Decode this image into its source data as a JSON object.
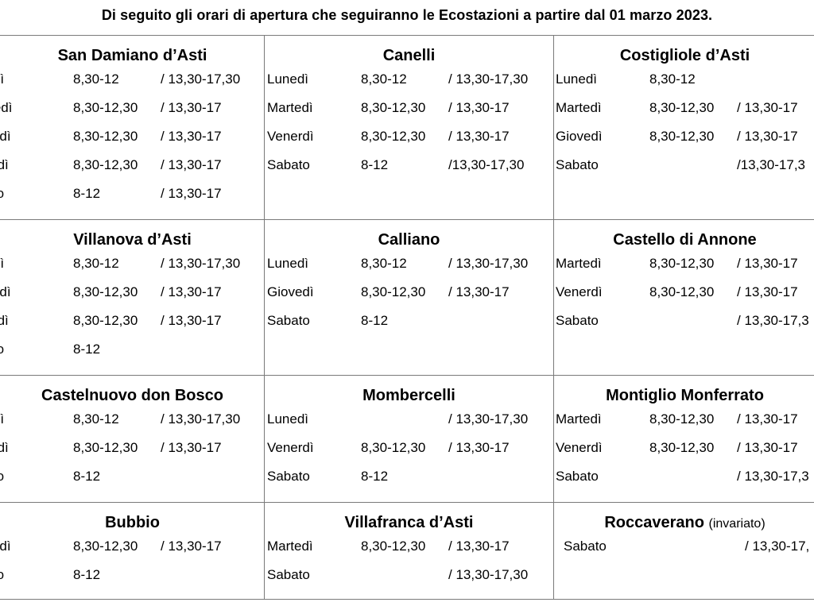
{
  "header": {
    "title": "Di seguito gli orari di apertura che seguiranno le Ecostazioni a partire dal 01 marzo 2023."
  },
  "stations": [
    {
      "name": "San Damiano d’Asti",
      "note": "",
      "rows": [
        {
          "day": "nedì",
          "am": "8,30-12",
          "pm": "/ 13,30-17,30"
        },
        {
          "day": "artedì",
          "am": "8,30-12,30",
          "pm": "/ 13,30-17"
        },
        {
          "day": "ovedì",
          "am": "8,30-12,30",
          "pm": "/ 13,30-17"
        },
        {
          "day": "nerdì",
          "am": "8,30-12,30",
          "pm": "/ 13,30-17"
        },
        {
          "day": "bato",
          "am": "8-12",
          "pm": "/ 13,30-17"
        }
      ]
    },
    {
      "name": "Canelli",
      "note": "",
      "rows": [
        {
          "day": "Lunedì",
          "am": "8,30-12",
          "pm": "/ 13,30-17,30"
        },
        {
          "day": "Martedì",
          "am": "8,30-12,30",
          "pm": "/ 13,30-17"
        },
        {
          "day": "Venerdì",
          "am": "8,30-12,30",
          "pm": "/ 13,30-17"
        },
        {
          "day": "Sabato",
          "am": "8-12",
          "pm": "/13,30-17,30"
        }
      ]
    },
    {
      "name": "Costigliole d’Asti",
      "note": "",
      "rows": [
        {
          "day": "Lunedì",
          "am": "8,30-12",
          "pm": ""
        },
        {
          "day": "Martedì",
          "am": "8,30-12,30",
          "pm": "/ 13,30-17"
        },
        {
          "day": "Giovedì",
          "am": "8,30-12,30",
          "pm": "/ 13,30-17"
        },
        {
          "day": "Sabato",
          "am": "",
          "pm": "/13,30-17,3"
        }
      ]
    },
    {
      "name": "Villanova d’Asti",
      "note": "",
      "rows": [
        {
          "day": "nedì",
          "am": "8,30-12",
          "pm": "/ 13,30-17,30"
        },
        {
          "day": "ovedì",
          "am": "8,30-12,30",
          "pm": "/ 13,30-17"
        },
        {
          "day": "nerdì",
          "am": "8,30-12,30",
          "pm": "/ 13,30-17"
        },
        {
          "day": "bato",
          "am": "8-12",
          "pm": ""
        }
      ]
    },
    {
      "name": "Calliano",
      "note": "",
      "rows": [
        {
          "day": "Lunedì",
          "am": "8,30-12",
          "pm": "/ 13,30-17,30"
        },
        {
          "day": "Giovedì",
          "am": "8,30-12,30",
          "pm": "/ 13,30-17"
        },
        {
          "day": "Sabato",
          "am": "8-12",
          "pm": ""
        }
      ]
    },
    {
      "name": "Castello di Annone",
      "note": "",
      "rows": [
        {
          "day": "Martedì",
          "am": "8,30-12,30",
          "pm": "/ 13,30-17"
        },
        {
          "day": "Venerdì",
          "am": "8,30-12,30",
          "pm": "/ 13,30-17"
        },
        {
          "day": "Sabato",
          "am": "",
          "pm": "/ 13,30-17,3"
        }
      ]
    },
    {
      "name": "Castelnuovo don Bosco",
      "note": "",
      "rows": [
        {
          "day": "nedì",
          "am": "8,30-12",
          "pm": "/ 13,30-17,30"
        },
        {
          "day": "nerdì",
          "am": "8,30-12,30",
          "pm": "/ 13,30-17"
        },
        {
          "day": "bato",
          "am": "8-12",
          "pm": ""
        }
      ]
    },
    {
      "name": "Mombercelli",
      "note": "",
      "rows": [
        {
          "day": "Lunedì",
          "am": "",
          "pm": "/ 13,30-17,30"
        },
        {
          "day": "Venerdì",
          "am": "8,30-12,30",
          "pm": "/ 13,30-17"
        },
        {
          "day": "Sabato",
          "am": "8-12",
          "pm": ""
        }
      ]
    },
    {
      "name": "Montiglio Monferrato",
      "note": "",
      "rows": [
        {
          "day": "Martedì",
          "am": "8,30-12,30",
          "pm": "/ 13,30-17"
        },
        {
          "day": "Venerdì",
          "am": "8,30-12,30",
          "pm": "/ 13,30-17"
        },
        {
          "day": "Sabato",
          "am": "",
          "pm": "/ 13,30-17,3"
        }
      ]
    },
    {
      "name": "Bubbio",
      "note": "",
      "rows": [
        {
          "day": "ovedì",
          "am": "8,30-12,30",
          "pm": "/ 13,30-17"
        },
        {
          "day": "bato",
          "am": "8-12",
          "pm": ""
        }
      ]
    },
    {
      "name": "Villafranca d’Asti",
      "note": "",
      "rows": [
        {
          "day": "Martedì",
          "am": "8,30-12,30",
          "pm": "/ 13,30-17"
        },
        {
          "day": "Sabato",
          "am": "",
          "pm": "/ 13,30-17,30"
        }
      ]
    },
    {
      "name": "Roccaverano",
      "note": "(invariato)",
      "rows": [
        {
          "day": "Sabato",
          "am": "",
          "pm": "/ 13,30-17,"
        }
      ]
    }
  ]
}
